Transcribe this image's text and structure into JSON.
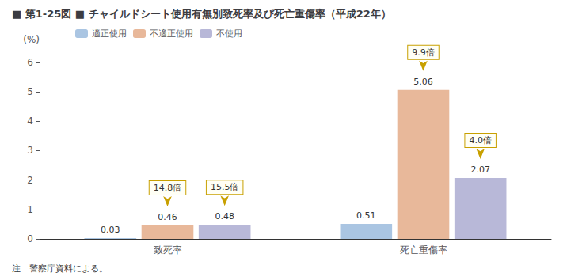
{
  "chart_data": {
    "type": "bar",
    "title": "■ 第1-25図 ■ チャイルドシート使用有無別致死率及び死亡重傷率（平成22年）",
    "note": "注　警察庁資料による。",
    "y_label": "(%)",
    "categories": [
      "致死率",
      "死亡重傷率"
    ],
    "series": [
      {
        "name": "適正使用",
        "color": "#aac5e2",
        "values": [
          0.03,
          0.51
        ]
      },
      {
        "name": "不適正使用",
        "color": "#e8b89a",
        "values": [
          0.46,
          5.06
        ]
      },
      {
        "name": "不使用",
        "color": "#b8b8d8",
        "values": [
          0.48,
          2.07
        ]
      }
    ],
    "ylim": [
      0,
      6.4
    ],
    "yticks": [
      0,
      1,
      2,
      3,
      4,
      5,
      6
    ],
    "grid": false,
    "legend": "upper left",
    "data_labels": true,
    "annotations": [
      {
        "text": "14.8倍",
        "series": "不適正使用",
        "category": "致死率",
        "color": "#c8a000"
      },
      {
        "text": "15.5倍",
        "series": "不使用",
        "category": "致死率",
        "color": "#c8a000"
      },
      {
        "text": "9.9倍",
        "series": "不適正使用",
        "category": "死亡重傷率",
        "color": "#c8a000"
      },
      {
        "text": "4.0倍",
        "series": "不使用",
        "category": "死亡重傷率",
        "color": "#c8a000"
      }
    ]
  }
}
